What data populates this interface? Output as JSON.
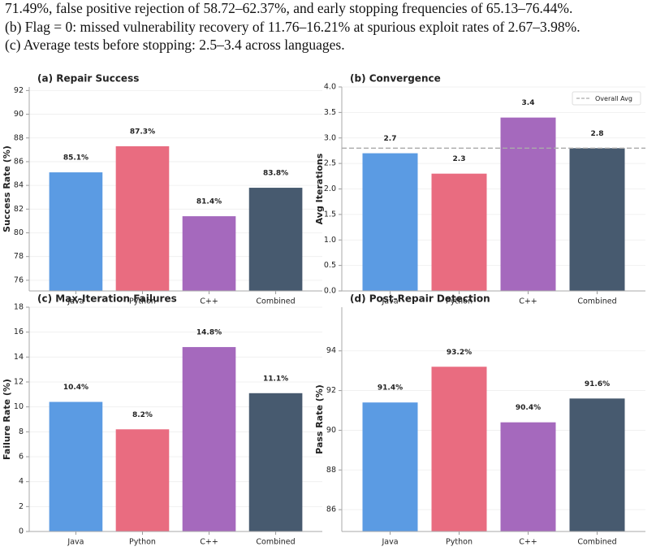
{
  "caption": [
    "71.49%, false positive rejection of 58.72–62.37%, and early stopping frequencies of 65.13–76.44%.",
    "(b) Flag = 0: missed vulnerability recovery of 11.76–16.21% at spurious exploit rates of 2.67–3.98%.",
    "(c) Average tests before stopping: 2.5–3.4 across languages."
  ],
  "chart_data": [
    {
      "type": "bar",
      "title": "(a) Repair Success",
      "y_label": "Success Rate (%)",
      "categories": [
        "Java",
        "Python",
        "C++",
        "Combined"
      ],
      "values": [
        85.1,
        87.3,
        81.4,
        83.8
      ],
      "value_labels": [
        "85.1%",
        "87.3%",
        "81.4%",
        "83.8%"
      ],
      "colors": [
        "#5b9be3",
        "#e96c80",
        "#a569bd",
        "#475a6f"
      ],
      "ylim": [
        75.1,
        92.3
      ],
      "yticks": [
        76,
        78,
        80,
        82,
        84,
        86,
        88,
        90,
        92
      ],
      "grid": true
    },
    {
      "type": "bar",
      "title": "(b) Convergence",
      "y_label": "Avg Iterations",
      "categories": [
        "Java",
        "Python",
        "C++",
        "Combined"
      ],
      "values": [
        2.7,
        2.3,
        3.4,
        2.8
      ],
      "colors": [
        "#5b9be3",
        "#e96c80",
        "#a569bd",
        "#475a6f"
      ],
      "reference_line": {
        "name": "Overall Avg",
        "value": 2.8,
        "color": "#aaaaaa"
      },
      "legend": "upper right",
      "ylim": [
        0,
        4.0
      ],
      "yticks": [
        {
          "value": 0,
          "label": "0.0"
        },
        0.5,
        {
          "value": 1,
          "label": "1.0"
        },
        1.5,
        {
          "value": 2,
          "label": "2.0"
        },
        2.5,
        {
          "value": 3,
          "label": "3.0"
        },
        3.5,
        {
          "value": 4,
          "label": "4.0"
        }
      ],
      "grid": true
    },
    {
      "type": "bar",
      "title": "(c) Max-Iteration Failures",
      "y_label": "Failure Rate (%)",
      "categories": [
        "Java",
        "Python",
        "C++",
        "Combined"
      ],
      "values": [
        10.4,
        8.2,
        14.8,
        11.1
      ],
      "value_labels": [
        "10.4%",
        "8.2%",
        "14.8%",
        "11.1%"
      ],
      "colors": [
        "#5b9be3",
        "#e96c80",
        "#a569bd",
        "#475a6f"
      ],
      "ylim": [
        0,
        18
      ],
      "yticks": [
        0,
        2,
        4,
        6,
        8,
        10,
        12,
        14,
        16,
        18
      ],
      "grid": true
    },
    {
      "type": "bar",
      "title": "(d) Post-Repair Detection",
      "y_label": "Pass Rate (%)",
      "categories": [
        "Java",
        "Python",
        "C++",
        "Combined"
      ],
      "values": [
        91.4,
        93.2,
        90.4,
        91.6
      ],
      "value_labels": [
        "91.4%",
        "93.2%",
        "90.4%",
        "91.6%"
      ],
      "colors": [
        "#5b9be3",
        "#e96c80",
        "#a569bd",
        "#475a6f"
      ],
      "ylim": [
        84.9,
        96.2
      ],
      "yticks": [
        86,
        88,
        90,
        92,
        94
      ],
      "grid": true
    }
  ]
}
